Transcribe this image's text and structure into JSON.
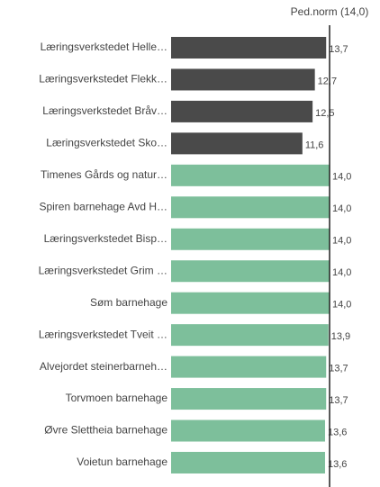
{
  "chart_data": {
    "type": "bar",
    "orientation": "horizontal",
    "categories": [
      "Læringsverkstedet Helle…",
      "Læringsverkstedet Flekk…",
      "Læringsverkstedet Bråv…",
      "Læringsverkstedet Sko…",
      "Timenes Gårds og natur…",
      "Spiren barnehage Avd H…",
      "Læringsverkstedet Bisp…",
      "Læringsverkstedet Grim …",
      "Søm barnehage",
      "Læringsverkstedet Tveit …",
      "Alvejordet steinerbarneh…",
      "Torvmoen barnehage",
      "Øvre Slettheia barnehage",
      "Voietun barnehage"
    ],
    "values": [
      13.7,
      12.7,
      12.5,
      11.6,
      14,
      14,
      14,
      14,
      14,
      13.9,
      13.7,
      13.7,
      13.6,
      13.6
    ],
    "value_labels": [
      "13,7",
      "12,7",
      "12,5",
      "11,6",
      "14,0",
      "14,0",
      "14,0",
      "14,0",
      "14,0",
      "13,9",
      "13,7",
      "13,7",
      "13,6",
      "13,6"
    ],
    "colors": [
      "#4a4a4a",
      "#4a4a4a",
      "#4a4a4a",
      "#4a4a4a",
      "#7dbf9b",
      "#7dbf9b",
      "#7dbf9b",
      "#7dbf9b",
      "#7dbf9b",
      "#7dbf9b",
      "#7dbf9b",
      "#7dbf9b",
      "#7dbf9b",
      "#7dbf9b"
    ],
    "xlim": [
      0,
      14
    ],
    "reference": {
      "value": 14,
      "label": "Ped.norm (14,0)"
    }
  }
}
